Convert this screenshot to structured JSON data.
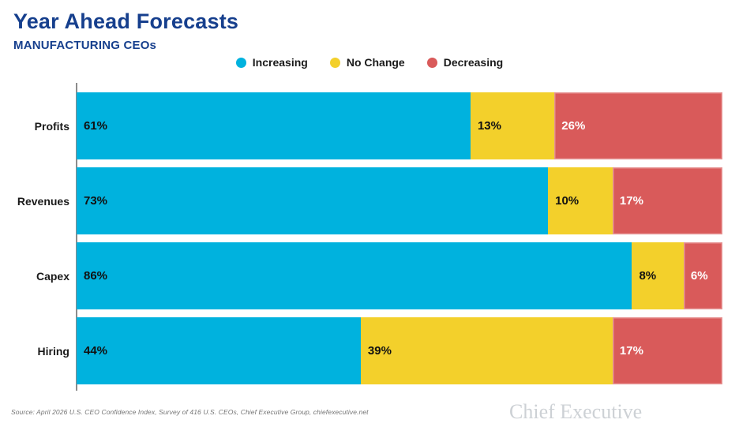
{
  "header": {
    "title": "Year Ahead Forecasts",
    "subtitle": "MANUFACTURING CEOs"
  },
  "chart_data": {
    "type": "bar",
    "orientation": "horizontal",
    "stacked": true,
    "title": "Year Ahead Forecasts",
    "subtitle": "MANUFACTURING CEOs",
    "categories": [
      "Profits",
      "Revenues",
      "Capex",
      "Hiring"
    ],
    "series": [
      {
        "name": "Increasing",
        "color": "#00b2de",
        "label_color": "#111111",
        "values": [
          61,
          73,
          86,
          44
        ]
      },
      {
        "name": "No Change",
        "color": "#f3d02b",
        "label_color": "#111111",
        "values": [
          13,
          10,
          8,
          39
        ]
      },
      {
        "name": "Decreasing",
        "color": "#d95a5a",
        "label_color": "#ffffff",
        "values": [
          26,
          17,
          6,
          17
        ]
      }
    ],
    "value_suffix": "%",
    "xlim": [
      0,
      100
    ],
    "grid": false,
    "legend_position": "top-center"
  },
  "footer": {
    "source": "Source: April 2026 U.S. CEO Confidence Index, Survey of 416 U.S. CEOs, Chief Executive Group, chiefexecutive.net",
    "brand": "Chief Executive"
  },
  "colors": {
    "title_navy": "#163f8d",
    "increasing": "#00b2de",
    "no_change": "#f3d02b",
    "decreasing": "#d95a5a",
    "axis_line": "#8c8c8c",
    "source_text": "#757575",
    "brand_text": "#cdd1d5"
  }
}
